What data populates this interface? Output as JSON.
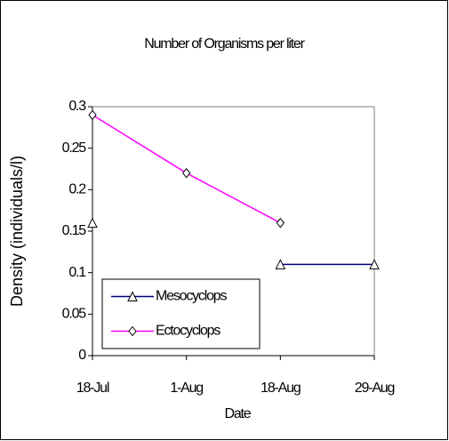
{
  "chart_data": {
    "type": "line",
    "title": "Number of Organisms per liter",
    "x_label": "Date",
    "y_label": "Density (individuals/l)",
    "categories": [
      "18-Jul",
      "1-Aug",
      "18-Aug",
      "29-Aug"
    ],
    "series": [
      {
        "name": "Mesocyclops",
        "color": "#000080",
        "marker": "triangle",
        "values": [
          0.16,
          null,
          0.11,
          0.11
        ]
      },
      {
        "name": "Ectocyclops",
        "color": "#ff00ff",
        "marker": "diamond",
        "values": [
          0.29,
          0.22,
          0.16,
          null
        ]
      }
    ],
    "ylim": [
      0,
      0.3
    ],
    "yticks": [
      0,
      0.05,
      0.1,
      0.15,
      0.2,
      0.25,
      0.3
    ],
    "grid": false,
    "legend": "lower left"
  }
}
